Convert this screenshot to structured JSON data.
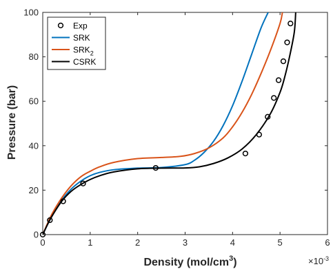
{
  "chart_data": {
    "type": "line",
    "xlabel": "Density (mol/cm",
    "xlabel_sup": "3",
    "xlabel_close": ")",
    "ylabel": "Pressure (bar)",
    "x_exponent_base": "×10",
    "x_exponent_power": "-3",
    "xlim": [
      0,
      6
    ],
    "ylim": [
      0,
      100
    ],
    "x_ticks": [
      "0",
      "1",
      "2",
      "3",
      "4",
      "5",
      "6"
    ],
    "y_ticks": [
      "0",
      "20",
      "40",
      "60",
      "80",
      "100"
    ],
    "legend_position": "top-left",
    "grid": false,
    "series": [
      {
        "name": "Exp",
        "sub": "",
        "kind": "markers",
        "color": "#000000",
        "x": [
          0.0,
          0.15,
          0.43,
          0.85,
          2.38,
          4.27,
          4.56,
          4.74,
          4.87,
          4.97,
          5.07,
          5.15,
          5.22
        ],
        "y": [
          0,
          6.5,
          15,
          23,
          30,
          36.5,
          45,
          53,
          61.5,
          69.5,
          78,
          86.5,
          95
        ]
      },
      {
        "name": "SRK",
        "sub": "",
        "kind": "line",
        "color": "#0072BD",
        "x": [
          0.0,
          0.1,
          0.2,
          0.4,
          0.6,
          0.8,
          1.0,
          1.2,
          1.5,
          2.0,
          2.5,
          3.0,
          3.2,
          3.4,
          3.6,
          3.8,
          4.0,
          4.2,
          4.4,
          4.6,
          4.75
        ],
        "y": [
          0,
          4.5,
          8.5,
          15.5,
          20.5,
          24,
          26.5,
          28,
          29.2,
          29.9,
          30.2,
          31.5,
          33.5,
          37,
          42,
          49,
          58,
          69,
          81,
          93,
          100
        ]
      },
      {
        "name": "SRK",
        "sub": "2",
        "kind": "line",
        "color": "#D95319",
        "x": [
          0.0,
          0.1,
          0.2,
          0.4,
          0.6,
          0.8,
          1.0,
          1.2,
          1.5,
          2.0,
          2.5,
          2.9,
          3.2,
          3.5,
          3.8,
          4.0,
          4.2,
          4.4,
          4.6,
          4.8,
          5.0,
          5.05
        ],
        "y": [
          0,
          5,
          9.5,
          16.5,
          22,
          26,
          28.5,
          30.5,
          32.5,
          34.2,
          34.7,
          35.2,
          36.5,
          39,
          43.5,
          48.5,
          55,
          63,
          72.5,
          83,
          95,
          100
        ]
      },
      {
        "name": "CSRK",
        "sub": "",
        "kind": "line",
        "color": "#000000",
        "x": [
          0.0,
          0.1,
          0.2,
          0.4,
          0.6,
          0.8,
          1.0,
          1.2,
          1.5,
          2.0,
          2.5,
          3.0,
          3.3,
          3.6,
          3.9,
          4.2,
          4.5,
          4.8,
          5.0,
          5.1,
          5.2,
          5.3,
          5.33
        ],
        "y": [
          0,
          4.5,
          8.5,
          15,
          19.5,
          22.5,
          24.8,
          26.5,
          28.2,
          29.6,
          29.9,
          30,
          30.5,
          32,
          34.5,
          38.5,
          45,
          54.5,
          64,
          71,
          80,
          91,
          100
        ]
      }
    ]
  }
}
